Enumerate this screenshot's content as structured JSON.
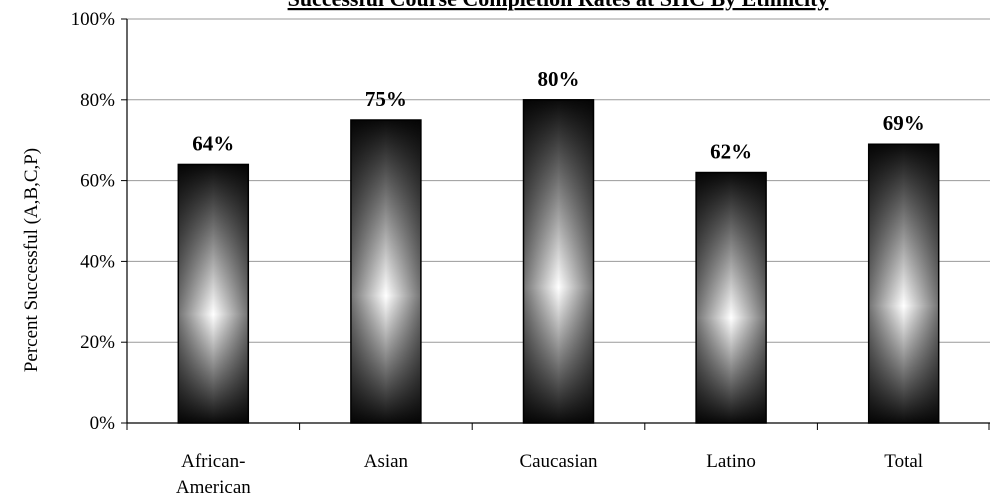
{
  "chart_data": {
    "type": "bar",
    "title": "Successful Course Completion Rates at SHC By Ethnicity",
    "xlabel": "",
    "ylabel": "Percent Successful (A,B,C,P)",
    "categories": [
      [
        "African-",
        "American"
      ],
      [
        "Asian"
      ],
      [
        "Caucasian"
      ],
      [
        "Latino"
      ],
      [
        "Total"
      ]
    ],
    "values": [
      64,
      75,
      80,
      62,
      69
    ],
    "data_labels": [
      "64%",
      "75%",
      "80%",
      "62%",
      "69%"
    ],
    "ylim": [
      0,
      100
    ],
    "yticks": [
      0,
      20,
      40,
      60,
      80,
      100
    ],
    "ytick_labels": [
      "0%",
      "20%",
      "40%",
      "60%",
      "80%",
      "100%"
    ],
    "grid": true,
    "legend": "none",
    "colors": {
      "bar_dark": "#0a0a0a",
      "bar_mid": "#7a7a7a",
      "bar_light": "#ffffff",
      "grid": "#9a9a9a",
      "axis": "#000000"
    }
  }
}
